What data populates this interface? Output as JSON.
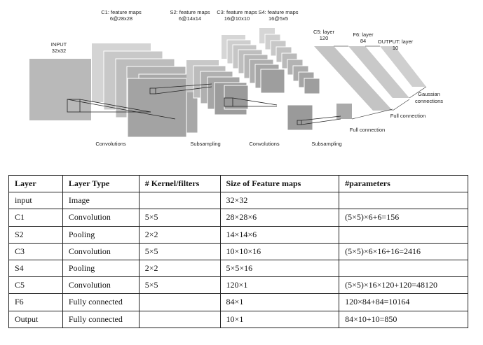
{
  "diagram": {
    "input_label": "INPUT",
    "input_size": "32x32",
    "c1_label": "C1: feature maps",
    "c1_size": "6@28x28",
    "s2_label": "S2: feature maps",
    "s2_size": "6@14x14",
    "c3_label": "C3: feature maps",
    "c3_size": "16@10x10",
    "s4_label": "S4: feature maps",
    "s4_size": "16@5x5",
    "c5_label": "C5: layer",
    "c5_size": "120",
    "f6_label": "F6: layer",
    "f6_size": "84",
    "output_label": "OUTPUT: layer",
    "output_size": "10",
    "op_convolutions_1": "Convolutions",
    "op_subsampling_1": "Subsampling",
    "op_convolutions_2": "Convolutions",
    "op_subsampling_2": "Subsampling",
    "op_full_connection_1": "Full connection",
    "op_full_connection_2": "Full connection",
    "op_gaussian_1": "Gaussian",
    "op_gaussian_2": "connections"
  },
  "table": {
    "headers": [
      "Layer",
      "Layer Type",
      "# Kernel/filters",
      "Size of Feature maps",
      "#parameters"
    ],
    "rows": [
      [
        "input",
        "Image",
        "",
        "32×32",
        ""
      ],
      [
        "C1",
        "Convolution",
        "5×5",
        "28×28×6",
        "(5×5)×6+6=156"
      ],
      [
        "S2",
        "Pooling",
        "2×2",
        "14×14×6",
        ""
      ],
      [
        "C3",
        "Convolution",
        "5×5",
        "10×10×16",
        "(5×5)×6×16+16=2416"
      ],
      [
        "S4",
        "Pooling",
        "2×2",
        "5×5×16",
        ""
      ],
      [
        "C5",
        "Convolution",
        "5×5",
        "120×1",
        "(5×5)×16×120+120=48120"
      ],
      [
        "F6",
        "Fully connected",
        "",
        "84×1",
        "120×84+84=10164"
      ],
      [
        "Output",
        "Fully connected",
        "",
        "10×1",
        "84×10+10=850"
      ]
    ]
  }
}
